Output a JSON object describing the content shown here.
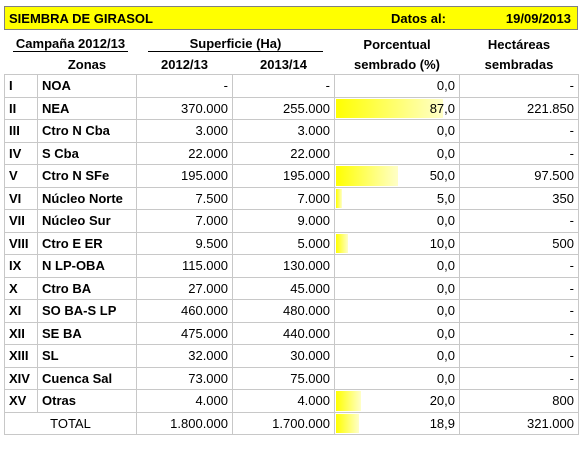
{
  "header": {
    "title": "SIEMBRA DE GIRASOL",
    "date_label": "Datos al:",
    "date": "19/09/2013"
  },
  "table": {
    "group_headers": [
      "Campaña 2012/13",
      "Superficie (Ha)",
      "Porcentual",
      "Hectáreas"
    ],
    "columns": [
      "Zonas",
      "2012/13",
      "2013/14",
      "sembrado (%)",
      "sembradas"
    ],
    "rows": [
      [
        "I",
        "NOA",
        "-",
        "-",
        "0,0",
        "-"
      ],
      [
        "II",
        "NEA",
        "370.000",
        "255.000",
        "87,0",
        "221.850"
      ],
      [
        "III",
        "Ctro N Cba",
        "3.000",
        "3.000",
        "0,0",
        "-"
      ],
      [
        "IV",
        "S Cba",
        "22.000",
        "22.000",
        "0,0",
        "-"
      ],
      [
        "V",
        "Ctro N SFe",
        "195.000",
        "195.000",
        "50,0",
        "97.500"
      ],
      [
        "VI",
        "Núcleo Norte",
        "7.500",
        "7.000",
        "5,0",
        "350"
      ],
      [
        "VII",
        "Núcleo Sur",
        "7.000",
        "9.000",
        "0,0",
        "-"
      ],
      [
        "VIII",
        "Ctro E ER",
        "9.500",
        "5.000",
        "10,0",
        "500"
      ],
      [
        "IX",
        "N LP-OBA",
        "115.000",
        "130.000",
        "0,0",
        "-"
      ],
      [
        "X",
        "Ctro BA",
        "27.000",
        "45.000",
        "0,0",
        "-"
      ],
      [
        "XI",
        "SO BA-S LP",
        "460.000",
        "480.000",
        "0,0",
        "-"
      ],
      [
        "XII",
        "SE BA",
        "475.000",
        "440.000",
        "0,0",
        "-"
      ],
      [
        "XIII",
        "SL",
        "32.000",
        "30.000",
        "0,0",
        "-"
      ],
      [
        "XIV",
        "Cuenca Sal",
        "73.000",
        "75.000",
        "0,0",
        "-"
      ],
      [
        "XV",
        "Otras",
        "4.000",
        "4.000",
        "20,0",
        "800"
      ]
    ],
    "total": [
      "TOTAL",
      "1.800.000",
      "1.700.000",
      "18,9",
      "321.000"
    ]
  }
}
